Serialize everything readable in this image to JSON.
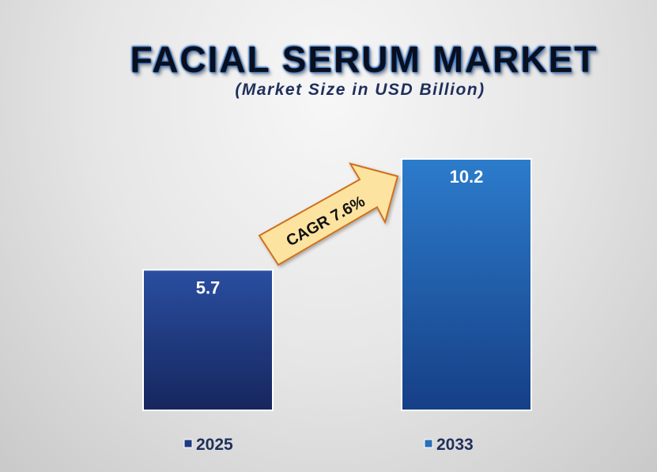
{
  "chart_data": {
    "type": "bar",
    "title": "FACIAL SERUM MARKET",
    "subtitle": "(Market Size in USD Billion)",
    "categories": [
      "2025",
      "2033"
    ],
    "values": [
      5.7,
      10.2
    ],
    "data_labels": [
      "5.7",
      "10.2"
    ],
    "ylim": [
      0,
      10.2
    ],
    "grid": false,
    "legend_placement": "bottom",
    "annotation": "CAGR 7.6%",
    "colors": {
      "bar_2025": [
        "#2a4ea0",
        "#16265e"
      ],
      "bar_2033": [
        "#2c7ccc",
        "#163f86"
      ],
      "arrow_fill": "#fde3a0",
      "arrow_stroke": "#d0701c",
      "legend_2025": "#1e3a80",
      "legend_2033": "#2a6fba"
    }
  }
}
